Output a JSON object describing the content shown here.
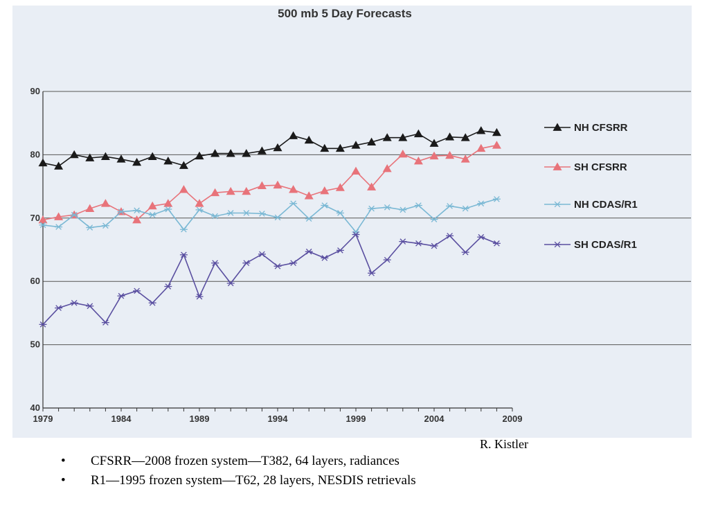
{
  "chart_data": {
    "type": "line",
    "title": "500 mb 5 Day Forecasts",
    "xlabel": "",
    "ylabel": "",
    "xlim": [
      1979,
      2009
    ],
    "ylim": [
      40,
      90
    ],
    "x_ticks": [
      1979,
      1984,
      1989,
      1994,
      1999,
      2004,
      2009
    ],
    "y_ticks": [
      40,
      50,
      60,
      70,
      80,
      90
    ],
    "grid": "horizontal",
    "legend_position": "right",
    "x": [
      1979,
      1980,
      1981,
      1982,
      1983,
      1984,
      1985,
      1986,
      1987,
      1988,
      1989,
      1990,
      1991,
      1992,
      1993,
      1994,
      1995,
      1996,
      1997,
      1998,
      1999,
      2000,
      2001,
      2002,
      2003,
      2004,
      2005,
      2006,
      2007,
      2008
    ],
    "series": [
      {
        "name": "NH CFSRR",
        "marker": "triangle",
        "color": "#1a1a1a",
        "values": [
          78.7,
          78.2,
          80.0,
          79.5,
          79.7,
          79.3,
          78.8,
          79.7,
          79.0,
          78.3,
          79.8,
          80.2,
          80.2,
          80.2,
          80.6,
          81.1,
          83.0,
          82.3,
          81.0,
          81.0,
          81.5,
          82.0,
          82.7,
          82.7,
          83.3,
          81.8,
          82.8,
          82.7,
          83.8,
          83.5
        ]
      },
      {
        "name": "SH CFSRR",
        "marker": "triangle",
        "color": "#e8737a",
        "values": [
          69.7,
          70.2,
          70.5,
          71.5,
          72.3,
          71.0,
          69.7,
          71.9,
          72.3,
          74.5,
          72.3,
          74.0,
          74.2,
          74.2,
          75.1,
          75.2,
          74.5,
          73.5,
          74.3,
          74.8,
          77.4,
          74.9,
          77.8,
          80.1,
          79.0,
          79.8,
          79.9,
          79.3,
          81.0,
          81.5
        ]
      },
      {
        "name": "NH CDAS/R1",
        "marker": "asterisk",
        "color": "#7ab8d4",
        "values": [
          68.9,
          68.6,
          70.5,
          68.5,
          68.8,
          71.0,
          71.2,
          70.5,
          71.4,
          68.2,
          71.3,
          70.3,
          70.8,
          70.8,
          70.7,
          70.1,
          72.3,
          69.9,
          72.0,
          70.8,
          67.8,
          71.5,
          71.7,
          71.3,
          72.0,
          69.8,
          71.9,
          71.5,
          72.3,
          73.0
        ]
      },
      {
        "name": "SH CDAS/R1",
        "marker": "asterisk",
        "color": "#5a4fa0",
        "values": [
          53.2,
          55.8,
          56.6,
          56.1,
          53.5,
          57.7,
          58.5,
          56.6,
          59.2,
          64.2,
          57.6,
          62.9,
          59.7,
          62.9,
          64.3,
          62.4,
          62.9,
          64.7,
          63.7,
          64.9,
          67.4,
          61.3,
          63.4,
          66.3,
          66.0,
          65.6,
          67.2,
          64.6,
          67.0,
          66.0
        ]
      }
    ]
  },
  "credit": "R. Kistler",
  "bullets": [
    {
      "marker": "•",
      "text": "CFSRR—2008 frozen system—T382, 64 layers, radiances"
    },
    {
      "marker": "•",
      "text": "R1—1995 frozen system—T62, 28 layers, NESDIS retrievals"
    }
  ]
}
